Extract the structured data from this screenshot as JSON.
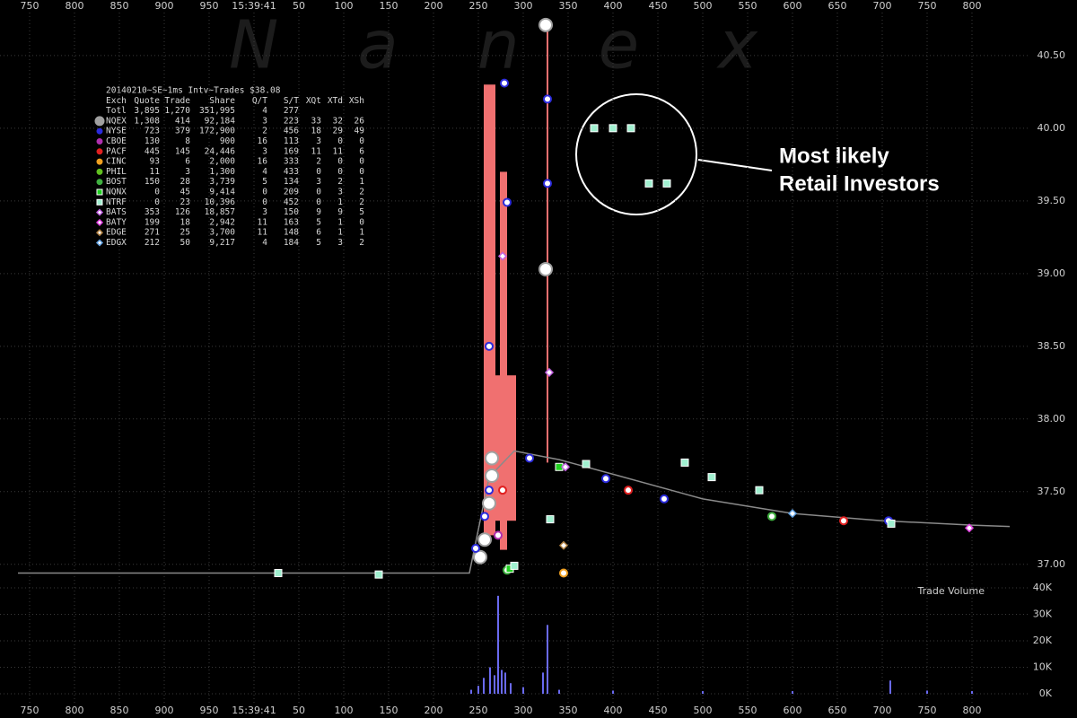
{
  "chart_data": {
    "type": "scatter",
    "title": "20140210~SE~1ms Intv~Trades $38.08",
    "watermark": "Nanex",
    "xlim": [
      717,
      1917
    ],
    "xticks": [
      750,
      800,
      850,
      900,
      950,
      {
        "value": 1000,
        "label": "15:39:41"
      },
      {
        "value": 1050,
        "label": "50"
      },
      {
        "value": 1100,
        "label": "100"
      },
      {
        "value": 1150,
        "label": "150"
      },
      {
        "value": 1200,
        "label": "200"
      },
      {
        "value": 1250,
        "label": "250"
      },
      {
        "value": 1300,
        "label": "300"
      },
      {
        "value": 1350,
        "label": "350"
      },
      {
        "value": 1400,
        "label": "400"
      },
      {
        "value": 1450,
        "label": "450"
      },
      {
        "value": 1500,
        "label": "500"
      },
      {
        "value": 1550,
        "label": "550"
      },
      {
        "value": 1600,
        "label": "600"
      },
      {
        "value": 1650,
        "label": "650"
      },
      {
        "value": 1700,
        "label": "700"
      },
      {
        "value": 1750,
        "label": "750"
      },
      {
        "value": 1800,
        "label": "800"
      }
    ],
    "ylim": [
      36.9,
      40.82
    ],
    "yticks": [
      {
        "value": 37,
        "label": "37.00"
      },
      {
        "value": 37.5,
        "label": "37.50"
      },
      {
        "value": 38,
        "label": "38.00"
      },
      {
        "value": 38.5,
        "label": "38.50"
      },
      {
        "value": 39,
        "label": "39.00"
      },
      {
        "value": 39.5,
        "label": "39.50"
      },
      {
        "value": 40,
        "label": "40.00"
      },
      {
        "value": 40.5,
        "label": "40.50"
      }
    ],
    "grid": true,
    "table_header": [
      "Exch",
      "Quote",
      "Trade",
      "Share",
      "Q/T",
      "S/T",
      "XQt",
      "XTd",
      "XSh"
    ],
    "total": [
      "Totl",
      "3,895",
      "1,270",
      "351,995",
      "4",
      "277"
    ],
    "series": [
      {
        "name": "NQEX",
        "color": "#a0a0a0",
        "marker": "circle",
        "stats": [
          "1,308",
          "414",
          "92,184",
          "3",
          "223",
          "33",
          "32",
          "26"
        ],
        "x": [
          1265,
          1265,
          1262,
          1325,
          1325,
          1257,
          1252
        ],
        "values": [
          37.73,
          37.61,
          37.42,
          40.71,
          39.03,
          37.17,
          37.05
        ]
      },
      {
        "name": "NYSE",
        "color": "#2b2bdc",
        "marker": "circle",
        "stats": [
          "723",
          "379",
          "172,900",
          "2",
          "456",
          "18",
          "29",
          "49"
        ],
        "x": [
          1279,
          1327,
          1327,
          1262,
          1282,
          1392,
          1307,
          1262,
          1257,
          1247,
          1707,
          1457
        ],
        "values": [
          40.31,
          40.2,
          39.62,
          38.5,
          39.49,
          37.59,
          37.73,
          37.51,
          37.33,
          37.11,
          37.3,
          37.45
        ]
      },
      {
        "name": "CBOE",
        "color": "#b030b0",
        "marker": "circle",
        "stats": [
          "130",
          "8",
          "900",
          "16",
          "113",
          "3",
          "0",
          "0"
        ],
        "x": [
          1272
        ],
        "values": [
          37.2
        ]
      },
      {
        "name": "PACF",
        "color": "#e02020",
        "marker": "circle",
        "stats": [
          "445",
          "145",
          "24,446",
          "3",
          "169",
          "11",
          "11",
          "6"
        ],
        "x": [
          1277,
          1417,
          1657
        ],
        "values": [
          37.51,
          37.51,
          37.3
        ]
      },
      {
        "name": "CINC",
        "color": "#f0a020",
        "marker": "circle",
        "stats": [
          "93",
          "6",
          "2,000",
          "16",
          "333",
          "2",
          "0",
          "0"
        ],
        "x": [
          1345
        ],
        "values": [
          36.94
        ]
      },
      {
        "name": "PHIL",
        "color": "#60c020",
        "marker": "circle",
        "stats": [
          "11",
          "3",
          "1,300",
          "4",
          "433",
          "0",
          "0",
          "0"
        ],
        "x": [],
        "values": []
      },
      {
        "name": "BOST",
        "color": "#40b040",
        "marker": "circle",
        "stats": [
          "150",
          "28",
          "3,739",
          "5",
          "134",
          "3",
          "2",
          "1"
        ],
        "x": [
          1282,
          1577
        ],
        "values": [
          36.96,
          37.33
        ]
      },
      {
        "name": "NQNX",
        "color": "#20d020",
        "marker": "square",
        "stats": [
          "0",
          "45",
          "9,414",
          "0",
          "209",
          "0",
          "3",
          "2"
        ],
        "x": [
          1285,
          1340
        ],
        "values": [
          36.97,
          37.67
        ]
      },
      {
        "name": "NTRF",
        "color": "#a0f0d0",
        "marker": "square",
        "stats": [
          "0",
          "23",
          "10,396",
          "0",
          "452",
          "0",
          "1",
          "2"
        ],
        "x": [
          1027,
          1139,
          1370,
          1480,
          1510,
          1563,
          1330,
          1290,
          1710,
          1379,
          1400,
          1420,
          1440,
          1460
        ],
        "values": [
          36.94,
          36.93,
          37.69,
          37.7,
          37.6,
          37.51,
          37.31,
          36.99,
          37.28,
          40.0,
          40.0,
          40.0,
          39.62,
          39.62
        ]
      },
      {
        "name": "BATS",
        "color": "#c060e0",
        "marker": "diamond",
        "stats": [
          "353",
          "126",
          "18,857",
          "3",
          "150",
          "9",
          "9",
          "5"
        ],
        "x": [
          1329,
          1277,
          1347
        ],
        "values": [
          38.32,
          39.12,
          37.67
        ]
      },
      {
        "name": "BATY",
        "color": "#e040e0",
        "marker": "diamond",
        "stats": [
          "199",
          "18",
          "2,942",
          "11",
          "163",
          "5",
          "1",
          "0"
        ],
        "x": [
          1797
        ],
        "values": [
          37.25
        ]
      },
      {
        "name": "EDGE",
        "color": "#b08040",
        "marker": "diamond",
        "stats": [
          "271",
          "25",
          "3,700",
          "11",
          "148",
          "6",
          "1",
          "1"
        ],
        "x": [
          1345
        ],
        "values": [
          37.13
        ]
      },
      {
        "name": "EDGX",
        "color": "#60a0e0",
        "marker": "diamond",
        "stats": [
          "212",
          "50",
          "9,217",
          "4",
          "184",
          "5",
          "3",
          "2"
        ],
        "x": [
          1600
        ],
        "values": [
          37.35
        ]
      }
    ],
    "price_line": {
      "color": "#8a8a8a",
      "x": [
        737,
        1240,
        1262,
        1290,
        1340,
        1400,
        1500,
        1600,
        1700,
        1800,
        1842
      ],
      "values": [
        36.94,
        36.94,
        37.6,
        37.78,
        37.72,
        37.62,
        37.45,
        37.35,
        37.3,
        37.27,
        37.26
      ]
    },
    "spread_color": "#f07070",
    "spread": [
      {
        "x0": 1256,
        "x1": 1269,
        "low": 37.2,
        "high": 40.3
      },
      {
        "x0": 1274,
        "x1": 1282,
        "low": 37.1,
        "high": 39.7
      },
      {
        "x0": 1269,
        "x1": 1292,
        "low": 37.3,
        "high": 38.3
      },
      {
        "x0": 1326,
        "x1": 1328,
        "low": 37.7,
        "high": 40.7
      }
    ],
    "volume": {
      "label": "Trade Volume",
      "color": "#6a6af0",
      "ylim": [
        0,
        40000
      ],
      "yticks": [
        {
          "value": 0,
          "label": "0K"
        },
        {
          "value": 10000,
          "label": "10K"
        },
        {
          "value": 20000,
          "label": "20K"
        },
        {
          "value": 30000,
          "label": "30K"
        },
        {
          "value": 40000,
          "label": "40K"
        }
      ],
      "x": [
        1242,
        1250,
        1256,
        1263,
        1268,
        1272,
        1276,
        1280,
        1286,
        1300,
        1322,
        1327,
        1340,
        1400,
        1500,
        1600,
        1709,
        1750,
        1800
      ],
      "values": [
        1500,
        3000,
        6000,
        10000,
        7000,
        37000,
        9000,
        8000,
        4000,
        2500,
        8000,
        26000,
        1500,
        1200,
        1000,
        1000,
        5000,
        1200,
        1000
      ]
    },
    "annotation": [
      "Most likely",
      "Retail Investors"
    ]
  }
}
